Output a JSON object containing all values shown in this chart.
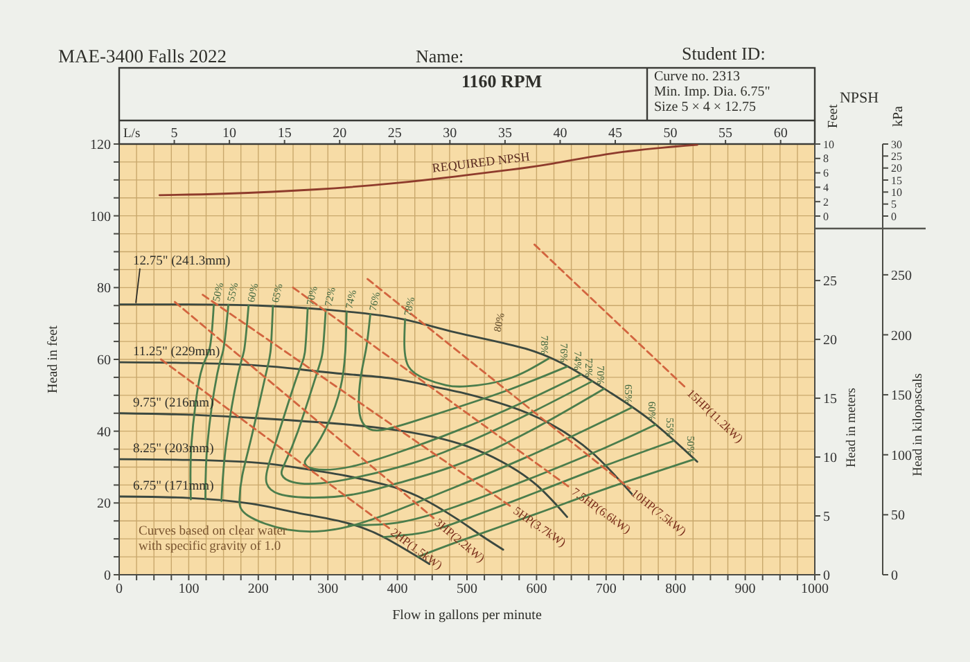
{
  "chart_data": [
    {
      "type": "line",
      "title": "MAE-3400 Falls 2022",
      "subtitle": "1160 RPM",
      "xlabel": "Flow in gallons per minute",
      "ylabel": "Head in feet",
      "y2label": "Head in meters",
      "y3label": "Head in kilopascals",
      "x2label": "L/s",
      "xlim": [
        0,
        1000
      ],
      "xticks": [
        0,
        {
          "value": 25,
          "label": null
        },
        {
          "value": 50,
          "label": null
        },
        {
          "value": 75,
          "label": null
        },
        100,
        {
          "value": 125,
          "label": null
        },
        {
          "value": 150,
          "label": null
        },
        {
          "value": 175,
          "label": null
        },
        200,
        {
          "value": 225,
          "label": null
        },
        {
          "value": 250,
          "label": null
        },
        {
          "value": 275,
          "label": null
        },
        300,
        {
          "value": 325,
          "label": null
        },
        {
          "value": 350,
          "label": null
        },
        {
          "value": 375,
          "label": null
        },
        400,
        {
          "value": 425,
          "label": null
        },
        {
          "value": 450,
          "label": null
        },
        {
          "value": 475,
          "label": null
        },
        500,
        {
          "value": 525,
          "label": null
        },
        {
          "value": 550,
          "label": null
        },
        {
          "value": 575,
          "label": null
        },
        600,
        {
          "value": 625,
          "label": null
        },
        {
          "value": 650,
          "label": null
        },
        {
          "value": 675,
          "label": null
        },
        700,
        {
          "value": 725,
          "label": null
        },
        {
          "value": 750,
          "label": null
        },
        {
          "value": 775,
          "label": null
        },
        800,
        {
          "value": 825,
          "label": null
        },
        {
          "value": 850,
          "label": null
        },
        {
          "value": 875,
          "label": null
        },
        900,
        {
          "value": 925,
          "label": null
        },
        {
          "value": 950,
          "label": null
        },
        {
          "value": 975,
          "label": null
        },
        1000
      ],
      "ylim": [
        0,
        120
      ],
      "yticks": [
        0,
        {
          "value": 5,
          "label": null
        },
        {
          "value": 10,
          "label": null
        },
        {
          "value": 15,
          "label": null
        },
        20,
        {
          "value": 25,
          "label": null
        },
        {
          "value": 30,
          "label": null
        },
        {
          "value": 35,
          "label": null
        },
        40,
        {
          "value": 45,
          "label": null
        },
        {
          "value": 50,
          "label": null
        },
        {
          "value": 55,
          "label": null
        },
        60,
        {
          "value": 65,
          "label": null
        },
        {
          "value": 70,
          "label": null
        },
        {
          "value": 75,
          "label": null
        },
        80,
        {
          "value": 85,
          "label": null
        },
        {
          "value": 90,
          "label": null
        },
        {
          "value": 95,
          "label": null
        },
        100,
        {
          "value": 105,
          "label": null
        },
        {
          "value": 110,
          "label": null
        },
        {
          "value": 115,
          "label": null
        },
        120
      ],
      "x2lim": [
        0,
        63.1
      ],
      "x2ticks": [
        5,
        10,
        15,
        20,
        25,
        30,
        35,
        40,
        45,
        50,
        55,
        60
      ],
      "y2lim": [
        0,
        36.6
      ],
      "y2ticks": [
        0,
        5,
        10,
        15,
        20,
        25
      ],
      "y3lim": [
        0,
        359
      ],
      "y3ticks": [
        0,
        50,
        100,
        150,
        200,
        250
      ],
      "grid": true,
      "series": [
        {
          "name": "12.75\" (241.3mm)",
          "color": "#3b4840",
          "x": [
            0,
            100,
            200,
            300,
            400,
            484,
            584,
            650,
            704,
            764,
            831
          ],
          "values": [
            75.3,
            75.3,
            75,
            73.8,
            71.5,
            67.5,
            63,
            57.5,
            51,
            43,
            31.5
          ]
        },
        {
          "name": "11.25\" (229mm)",
          "color": "#3b4840",
          "x": [
            0,
            100,
            200,
            257,
            320,
            391,
            450,
            491,
            560,
            620,
            680,
            737
          ],
          "values": [
            59.2,
            59,
            58.3,
            57.3,
            56,
            54.7,
            52.5,
            50.8,
            47,
            42,
            34,
            22.5
          ]
        },
        {
          "name": "9.75\" (216mm)",
          "color": "#3b4840",
          "x": [
            0,
            100,
            191,
            300,
            391,
            450,
            500,
            550,
            600,
            644
          ],
          "values": [
            45,
            44.6,
            43.7,
            42.3,
            40.5,
            38.5,
            35.8,
            31.5,
            25,
            16.1
          ]
        },
        {
          "name": "8.25\" (203mm)",
          "color": "#3b4840",
          "x": [
            0,
            100,
            200,
            257,
            320,
            380,
            430,
            486,
            520,
            552
          ],
          "values": [
            32.2,
            32,
            31.2,
            29.8,
            27.8,
            25.2,
            21.8,
            15.5,
            11,
            7
          ]
        },
        {
          "name": "6.75\" (171mm)",
          "color": "#3b4840",
          "x": [
            0,
            100,
            190,
            250,
            324,
            380,
            446
          ],
          "values": [
            21.8,
            21.4,
            19.8,
            17.5,
            14.6,
            10.5,
            3
          ]
        },
        {
          "name": "50%",
          "color": "#4b7d4c",
          "x": [
            136,
            130,
            117,
            104,
            103,
            null,
            430,
            484,
            600,
            700,
            827
          ],
          "values": [
            75.2,
            63,
            56,
            36.7,
            21,
            null,
            5,
            9,
            17,
            24,
            32.2
          ]
        },
        {
          "name": "55%",
          "color": "#4b7d4c",
          "x": [
            157,
            150,
            141,
            127,
            124,
            null,
            380,
            430,
            484,
            600,
            700,
            797
          ],
          "values": [
            75.2,
            63,
            56,
            36.7,
            21,
            null,
            10.5,
            11.5,
            14.5,
            23,
            30.5,
            37.3
          ]
        },
        {
          "name": "60%",
          "color": "#4b7d4c",
          "x": [
            186,
            180,
            171,
            154,
            147,
            null,
            330,
            400,
            484,
            600,
            700,
            771
          ],
          "values": [
            75,
            63,
            56,
            36.7,
            20.5,
            null,
            13.8,
            14.5,
            19,
            27.5,
            35.5,
            41.8
          ]
        },
        {
          "name": "65%",
          "color": "#4b7d4c",
          "x": [
            221,
            218,
            211,
            191,
            177,
            173,
            185,
            244,
            320,
            400,
            484,
            600,
            737
          ],
          "values": [
            74.9,
            63,
            56,
            39,
            27.7,
            21,
            16.5,
            12.5,
            13,
            18,
            24.5,
            34,
            46.6
          ]
        },
        {
          "name": "70%",
          "color": "#4b7d4c",
          "x": [
            271,
            267,
            257,
            231,
            214,
            212,
            230,
            280,
            340,
            400,
            484,
            590,
            697
          ],
          "values": [
            74.2,
            62,
            56,
            40.5,
            30,
            25.5,
            22.5,
            21.5,
            22.5,
            25.5,
            30.5,
            40,
            51.8
          ]
        },
        {
          "name": "72%",
          "color": "#4b7d4c",
          "x": [
            297,
            293,
            284,
            257,
            238,
            234,
            250,
            290,
            350,
            420,
            484,
            580,
            680
          ],
          "values": [
            73.9,
            63,
            56,
            40,
            31,
            27.8,
            25.8,
            25.5,
            27.5,
            31,
            35.5,
            44,
            53.9
          ]
        },
        {
          "name": "74%",
          "color": "#4b7d4c",
          "x": [
            327,
            325,
            318,
            300,
            278,
            267,
            280,
            330,
            400,
            484,
            580,
            664
          ],
          "values": [
            73.2,
            62,
            52,
            42,
            34.5,
            31.5,
            29.5,
            30,
            34,
            40,
            48,
            55.8
          ]
        },
        {
          "name": "76%",
          "color": "#4b7d4c",
          "x": [
            361,
            355,
            347,
            345,
            352,
            372,
            420,
            484,
            560,
            644
          ],
          "values": [
            72.6,
            63,
            54.7,
            46,
            41.8,
            40.2,
            42.5,
            46.5,
            51.5,
            58
          ]
        },
        {
          "name": "78%",
          "color": "#4b7d4c",
          "x": [
            411,
            410,
            416,
            439,
            470,
            499,
            558,
            617
          ],
          "values": [
            71.2,
            64,
            58,
            54.7,
            52.8,
            52.5,
            54.5,
            60.2
          ]
        },
        {
          "name": "2HP(1.5kW)",
          "color": "#d2643f",
          "line_style": "dashed",
          "x": [
            60,
            388
          ],
          "values": [
            60,
            13
          ]
        },
        {
          "name": "3HP(2.2kW)",
          "color": "#d2643f",
          "line_style": "dashed",
          "x": [
            80,
            452
          ],
          "values": [
            76,
            15.8
          ]
        },
        {
          "name": "5HP(3.7kW)",
          "color": "#d2643f",
          "line_style": "dashed",
          "x": [
            120,
            564
          ],
          "values": [
            78,
            18.9
          ]
        },
        {
          "name": "7.5HP(6.6kW)",
          "color": "#d2643f",
          "line_style": "dashed",
          "x": [
            250,
            648
          ],
          "values": [
            80,
            24.3
          ]
        },
        {
          "name": "10HP(7.5kW)",
          "color": "#d2643f",
          "line_style": "dashed",
          "x": [
            357,
            734
          ],
          "values": [
            82.4,
            24
          ]
        },
        {
          "name": "15HP(11.2kW)",
          "color": "#d2643f",
          "line_style": "dashed",
          "x": [
            597,
            815
          ],
          "values": [
            92,
            52
          ]
        }
      ],
      "annotations": [
        "Name:",
        "Student ID:",
        "Curve no. 2313",
        "Min. Imp. Dia. 6.75\"",
        "Size 5 × 4 × 12.75",
        "Curves based on clear water with specific gravity of 1.0",
        {
          "text": "80%",
          "x": 540,
          "y": 66
        }
      ]
    },
    {
      "type": "line",
      "title": "NPSH",
      "ylabel": "Feet",
      "y2label": "kPa",
      "xlim": [
        0,
        1000
      ],
      "ylim": [
        0,
        10
      ],
      "yticks": [
        0,
        2,
        4,
        6,
        8,
        10
      ],
      "y2lim": [
        0,
        30
      ],
      "y2ticks": [
        0,
        5,
        10,
        15,
        20,
        25,
        30
      ],
      "tick_labels": "y",
      "series": [
        {
          "name": "REQUIRED NPSH",
          "color": "#8e3b2c",
          "x": [
            58,
            150,
            284,
            400,
            484,
            560,
            624,
            724,
            831
          ],
          "values": [
            2.9,
            3.1,
            3.7,
            4.6,
            5.5,
            6.4,
            7.3,
            8.9,
            9.9
          ]
        }
      ]
    }
  ]
}
